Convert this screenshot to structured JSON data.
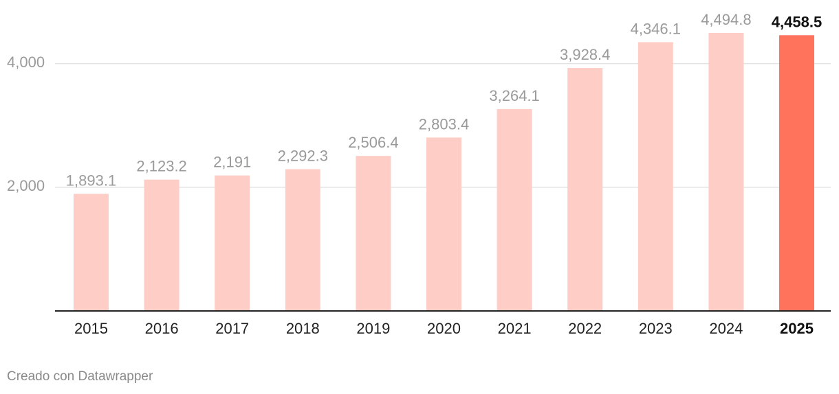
{
  "chart_data": {
    "type": "bar",
    "title": "",
    "xlabel": "",
    "ylabel": "",
    "categories": [
      "2015",
      "2016",
      "2017",
      "2018",
      "2019",
      "2020",
      "2021",
      "2022",
      "2023",
      "2024",
      "2025"
    ],
    "values": [
      1893.1,
      2123.2,
      2191,
      2292.3,
      2506.4,
      2803.4,
      3264.1,
      3928.4,
      4346.1,
      4494.8,
      4458.5
    ],
    "value_labels": [
      "1,893.1",
      "2,123.2",
      "2,191",
      "2,292.3",
      "2,506.4",
      "2,803.4",
      "3,264.1",
      "3,928.4",
      "4,346.1",
      "4,494.8",
      "4,458.5"
    ],
    "highlight_category": "2025",
    "ylim": [
      0,
      4500
    ],
    "yticks": [
      2000,
      4000
    ],
    "ytick_labels": [
      "2,000",
      "4,000"
    ],
    "grid": true,
    "legend": "none",
    "colors": {
      "bar": "#fdcdc6",
      "bar_highlight": "#ff735d",
      "grid": "#e2e2e2",
      "axis": "#222222"
    }
  },
  "credit": "Creado con Datawrapper"
}
